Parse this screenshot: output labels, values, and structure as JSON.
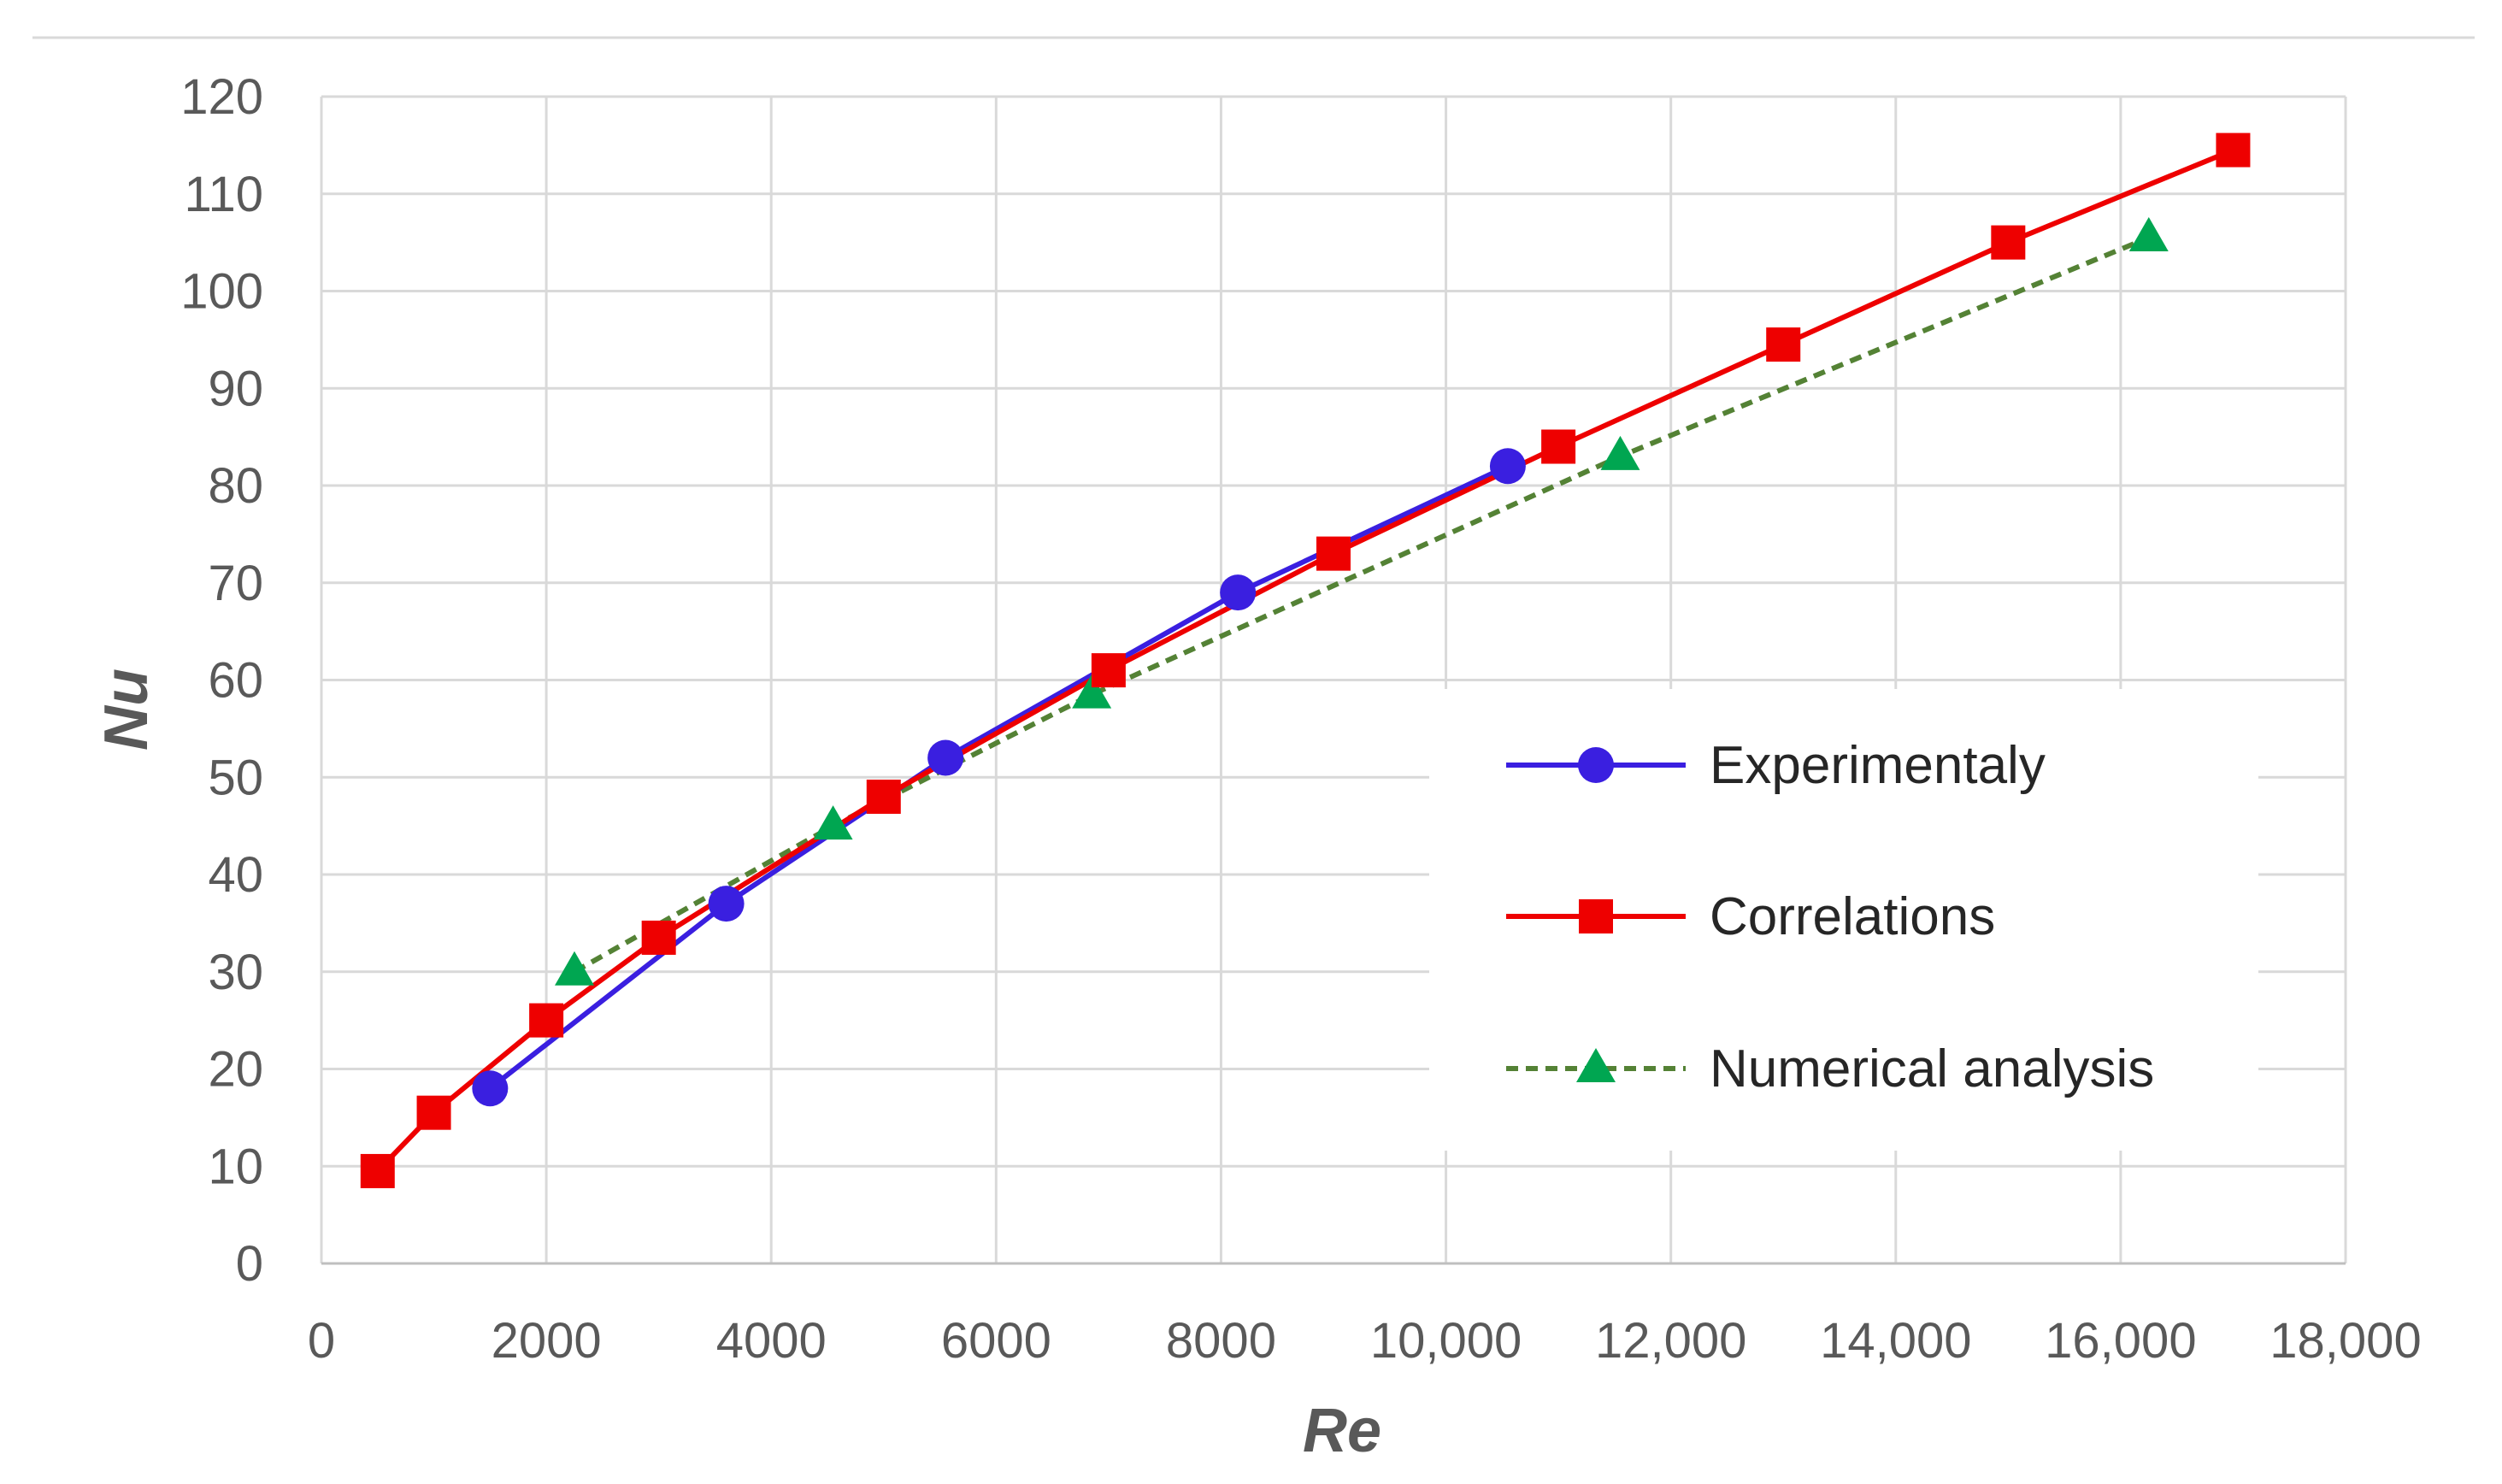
{
  "chart_data": {
    "type": "line",
    "title": "",
    "xlabel": "Re",
    "ylabel": "Nu",
    "xlim": [
      0,
      18000
    ],
    "ylim": [
      0,
      120
    ],
    "grid": true,
    "legend_position": "right",
    "x_tick_labels": [
      "0",
      "2000",
      "4000",
      "6000",
      "8000",
      "10,000",
      "12,000",
      "14,000",
      "16,000",
      "18,000"
    ],
    "y_tick_labels": [
      "0",
      "10",
      "20",
      "30",
      "40",
      "50",
      "60",
      "70",
      "80",
      "90",
      "100",
      "110",
      "120"
    ],
    "series": [
      {
        "name": "Experimentaly",
        "color": "#3A1FE0",
        "marker": "circle",
        "line_style": "solid",
        "x": [
          1500,
          3600,
          5550,
          8150,
          10550
        ],
        "y": [
          18,
          37,
          52,
          69,
          82
        ]
      },
      {
        "name": "Correlations",
        "color": "#EE0000",
        "marker": "square",
        "line_style": "solid",
        "x": [
          500,
          1000,
          2000,
          3000,
          5000,
          7000,
          9000,
          11000,
          13000,
          15000,
          17000
        ],
        "y": [
          9.5,
          15.5,
          25,
          33.5,
          48,
          61,
          73,
          84,
          94.5,
          105,
          114.5
        ]
      },
      {
        "name": "Numerical analysis",
        "color": "#00A651",
        "line_color": "#548235",
        "marker": "triangle",
        "line_style": "dashed",
        "x": [
          2250,
          4550,
          6850,
          11550,
          16250
        ],
        "y": [
          30,
          45,
          58.5,
          83,
          105.5
        ]
      }
    ]
  }
}
